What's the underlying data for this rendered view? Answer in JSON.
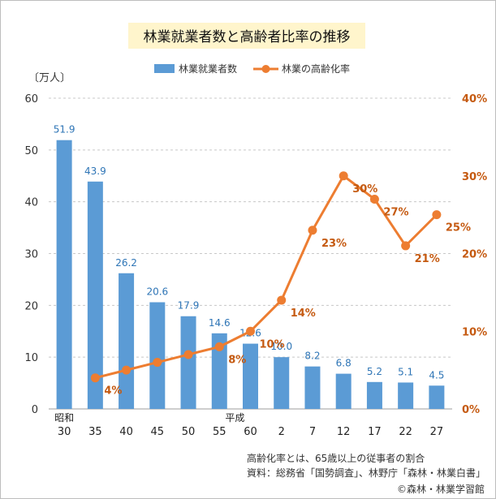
{
  "chart_data": {
    "type": "bar+line",
    "title": "林業就業者数と高齢者比率の推移",
    "y_left_unit": "〔万人〕",
    "y_left_ticks": [
      "0",
      "10",
      "20",
      "30",
      "40",
      "50",
      "60"
    ],
    "y_left_lim": [
      0,
      60
    ],
    "y_right_ticks": [
      "0%",
      "10%",
      "20%",
      "30%",
      "40%"
    ],
    "y_right_lim": [
      0,
      40
    ],
    "era_labels": {
      "showa": "昭和",
      "heisei": "平成"
    },
    "categories": [
      "30",
      "35",
      "40",
      "45",
      "50",
      "55",
      "60",
      "2",
      "7",
      "12",
      "17",
      "22",
      "27"
    ],
    "grid": true,
    "legend_position": "top",
    "series": [
      {
        "name": "林業就業者数",
        "kind": "bar",
        "axis": "left",
        "color": "#5b9bd5",
        "values": [
          51.9,
          43.9,
          26.2,
          20.6,
          17.9,
          14.6,
          12.6,
          10.0,
          8.2,
          6.8,
          5.2,
          5.1,
          4.5
        ],
        "labels": [
          "51.9",
          "43.9",
          "26.2",
          "20.6",
          "17.9",
          "14.6",
          "12.6",
          "10.0",
          "8.2",
          "6.8",
          "5.2",
          "5.1",
          "4.5"
        ]
      },
      {
        "name": "林業の高齢化率",
        "kind": "line",
        "axis": "right",
        "color": "#ed7d31",
        "values": [
          null,
          4,
          5,
          6,
          7,
          8,
          10,
          14,
          23,
          30,
          27,
          21,
          25
        ],
        "labels": [
          "",
          "4%",
          "",
          "",
          "",
          "8%",
          "10%",
          "14%",
          "23%",
          "30%",
          "27%",
          "21%",
          "25%"
        ]
      }
    ]
  },
  "notes": {
    "line1": "高齢化率とは、65歳以上の従事者の割合",
    "line2": "資料：総務省「国勢調査」、林野庁「森林・林業白書」",
    "copyright": "©森林・林業学習館"
  }
}
